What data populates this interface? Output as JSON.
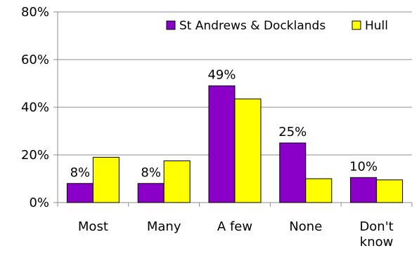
{
  "chart_data": {
    "type": "bar",
    "categories": [
      [
        "Most"
      ],
      [
        "Many"
      ],
      [
        "A few"
      ],
      [
        "None"
      ],
      [
        "Don't",
        "know"
      ]
    ],
    "series": [
      {
        "name": "St Andrews & Docklands",
        "color": "#8B00C9",
        "values": [
          8,
          8,
          49,
          25,
          10.5
        ],
        "data_labels": [
          "8%",
          "8%",
          "49%",
          "25%",
          "10%"
        ]
      },
      {
        "name": "Hull",
        "color": "#FFFF00",
        "values": [
          19,
          17.5,
          43.5,
          10,
          9.5
        ],
        "data_labels": [
          "",
          "",
          "",
          "",
          ""
        ]
      }
    ],
    "y_ticks": [
      "0%",
      "20%",
      "40%",
      "60%",
      "80%"
    ],
    "ylim": [
      0,
      80
    ],
    "grid": true,
    "legend_position": "top-right",
    "title": "",
    "xlabel": "",
    "ylabel": ""
  }
}
